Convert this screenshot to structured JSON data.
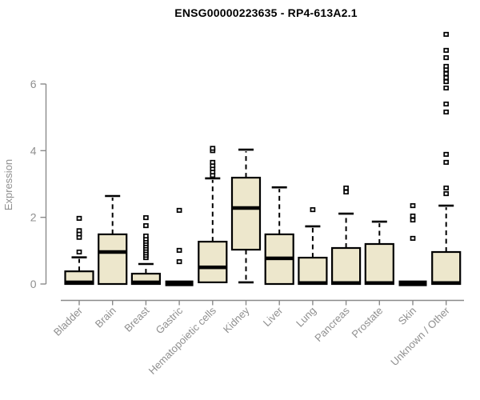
{
  "page": {
    "background": "#ffffff"
  },
  "chart_data": {
    "type": "boxplot",
    "title": "ENSG00000223635 - RP4-613A2.1",
    "ylabel": "Expression",
    "xlabel": "",
    "ylim": [
      0,
      7.6
    ],
    "yticks": [
      0,
      2,
      4,
      6
    ],
    "grid": false,
    "legend": false,
    "categories": [
      "Bladder",
      "Brain",
      "Breast",
      "Gastric",
      "Hematopoietic cells",
      "Kidney",
      "Liver",
      "Lung",
      "Pancreas",
      "Prostate",
      "Skin",
      "Unknown / Other"
    ],
    "series": [
      {
        "category": "Bladder",
        "low": 0,
        "q1": 0,
        "median": 0.05,
        "q3": 0.38,
        "high": 0.8,
        "outliers": [
          0.96,
          1.4,
          1.5,
          1.6,
          1.97
        ]
      },
      {
        "category": "Brain",
        "low": 0,
        "q1": 0,
        "median": 0.96,
        "q3": 1.49,
        "high": 2.64,
        "outliers": []
      },
      {
        "category": "Breast",
        "low": 0,
        "q1": 0,
        "median": 0.05,
        "q3": 0.31,
        "high": 0.6,
        "outliers": [
          0.79,
          0.86,
          0.93,
          1.0,
          1.07,
          1.14,
          1.21,
          1.28,
          1.35,
          1.44,
          1.75,
          1.99
        ]
      },
      {
        "category": "Gastric",
        "low": 0,
        "q1": 0,
        "median": 0.02,
        "q3": 0.03,
        "high": 0.03,
        "outliers": [
          0.67,
          1.01,
          2.21
        ]
      },
      {
        "category": "Hematopoietic cells",
        "low": 0.05,
        "q1": 0.05,
        "median": 0.5,
        "q3": 1.27,
        "high": 3.17,
        "outliers": [
          3.26,
          3.36,
          3.46,
          3.55,
          3.65,
          4.0,
          4.07
        ]
      },
      {
        "category": "Kidney",
        "low": 0.05,
        "q1": 1.03,
        "median": 2.28,
        "q3": 3.19,
        "high": 4.03,
        "outliers": []
      },
      {
        "category": "Liver",
        "low": 0,
        "q1": 0,
        "median": 0.77,
        "q3": 1.49,
        "high": 2.9,
        "outliers": []
      },
      {
        "category": "Lung",
        "low": 0,
        "q1": 0,
        "median": 0.03,
        "q3": 0.79,
        "high": 1.73,
        "outliers": [
          2.23
        ]
      },
      {
        "category": "Pancreas",
        "low": 0,
        "q1": 0,
        "median": 0.03,
        "q3": 1.08,
        "high": 2.11,
        "outliers": [
          2.76,
          2.88
        ]
      },
      {
        "category": "Prostate",
        "low": 0,
        "q1": 0,
        "median": 0.03,
        "q3": 1.2,
        "high": 1.87,
        "outliers": []
      },
      {
        "category": "Skin",
        "low": 0,
        "q1": 0,
        "median": 0.02,
        "q3": 0.03,
        "high": 0.03,
        "outliers": [
          1.37,
          1.92,
          2.04,
          2.35
        ]
      },
      {
        "category": "Unknown / Other",
        "low": 0,
        "q1": 0,
        "median": 0.03,
        "q3": 0.96,
        "high": 2.35,
        "outliers": [
          2.71,
          2.88,
          3.65,
          3.89,
          5.16,
          5.4,
          5.88,
          6.07,
          6.19,
          6.31,
          6.43,
          6.53,
          6.79,
          7.01,
          7.49
        ]
      }
    ],
    "colors": {
      "box_fill": "#ede7cc",
      "box_stroke": "#000000",
      "median": "#000000",
      "whisker": "#000000",
      "outlier_stroke": "#000000",
      "axis": "#8a8a8a",
      "tick_label": "#8f8f8f",
      "title": "#000000"
    }
  }
}
